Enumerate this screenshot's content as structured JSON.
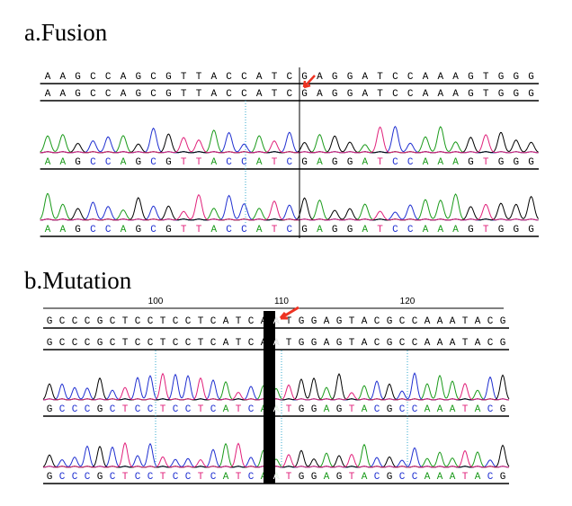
{
  "panel_a": {
    "title": "a.Fusion",
    "sequence": "AAGCCAGCGTTACCATCGAGGATCCAAAGTGGG"
  },
  "panel_b": {
    "title": "b.Mutation",
    "sequence": "GCCCGCTCCTCCTCATCAATGGAGTACGCCAAATACG",
    "ruler": [
      "100",
      "110",
      "120"
    ]
  }
}
